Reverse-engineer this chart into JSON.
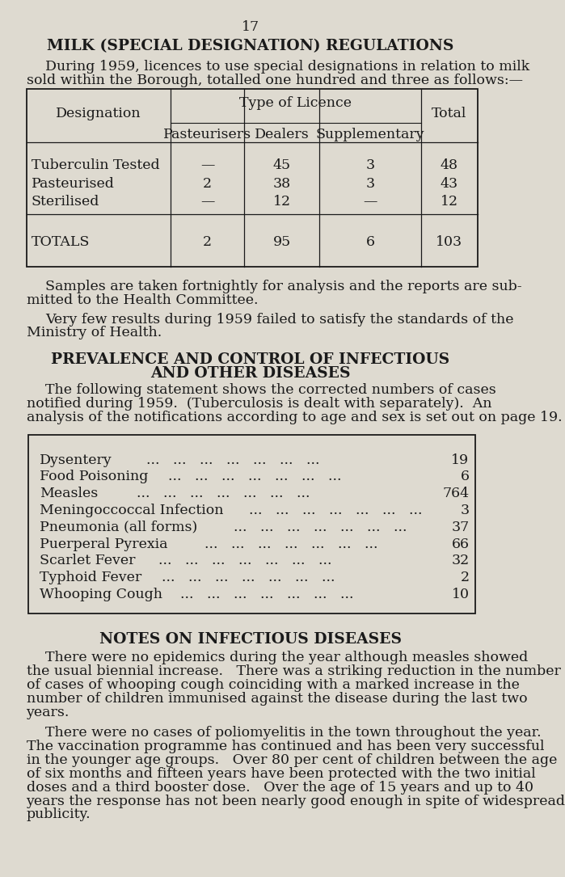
{
  "bg_color": "#dedad0",
  "text_color": "#1a1a1a",
  "page_number": "17",
  "section1_title": "MILK (SPECIAL DESIGNATION) REGULATIONS",
  "section1_para1_line1": "During 1959, licences to use special designations in relation to milk",
  "section1_para1_line2": "sold within the Borough, totalled one hundred and three as follows:—",
  "table1_data": [
    [
      "Tuberculin Tested",
      "—",
      "45",
      "3",
      "48"
    ],
    [
      "Pasteurised",
      "2",
      "38",
      "3",
      "43"
    ],
    [
      "Sterilised",
      "—",
      "12",
      "—",
      "12"
    ]
  ],
  "table1_totals": [
    "TOTALS",
    "2",
    "95",
    "6",
    "103"
  ],
  "section1_para2_line1": "Samples are taken fortnightly for analysis and the reports are sub-",
  "section1_para2_line2": "mitted to the Health Committee.",
  "section1_para3_line1": "Very few results during 1959 failed to satisfy the standards of the",
  "section1_para3_line2": "Ministry of Health.",
  "section2_title_line1": "PREVALENCE AND CONTROL OF INFECTIOUS",
  "section2_title_line2": "AND OTHER DISEASES",
  "section2_para1_line1": "The following statement shows the corrected numbers of cases",
  "section2_para1_line2": "notified during 1959.  (Tuberculosis is dealt with separately).  An",
  "section2_para1_line3": "analysis of the notifications according to age and sex is set out on page 19.",
  "table2_data": [
    [
      "Dysentery",
      "...",
      "19"
    ],
    [
      "Food Poisoning",
      "...",
      "6"
    ],
    [
      "Measles",
      "...",
      "764"
    ],
    [
      "Meningoccoccal Infection",
      "...",
      "3"
    ],
    [
      "Pneumonia (all forms)",
      "...",
      "37"
    ],
    [
      "Puerperal Pyrexia",
      "...",
      "66"
    ],
    [
      "Scarlet Fever",
      "...",
      "32"
    ],
    [
      "Typhoid Fever",
      "...",
      "2"
    ],
    [
      "Whooping Cough",
      "...",
      "10"
    ]
  ],
  "section3_title": "NOTES ON INFECTIOUS DISEASES",
  "section3_para1_lines": [
    "There were no epidemics during the year although measles showed",
    "the usual biennial increase.   There was a striking reduction in the number",
    "of cases of whooping cough coinciding with a marked increase in the",
    "number of children immunised against the disease during the last two",
    "years."
  ],
  "section3_para2_lines": [
    "There were no cases of poliomyelitis in the town throughout the year.",
    "The vaccination programme has continued and has been very successful",
    "in the younger age groups.   Over 80 per cent of children between the age",
    "of six months and fifteen years have been protected with the two initial",
    "doses and a third booster dose.   Over the age of 15 years and up to 40",
    "years the response has not been nearly good enough in spite of widespread",
    "publicity."
  ]
}
